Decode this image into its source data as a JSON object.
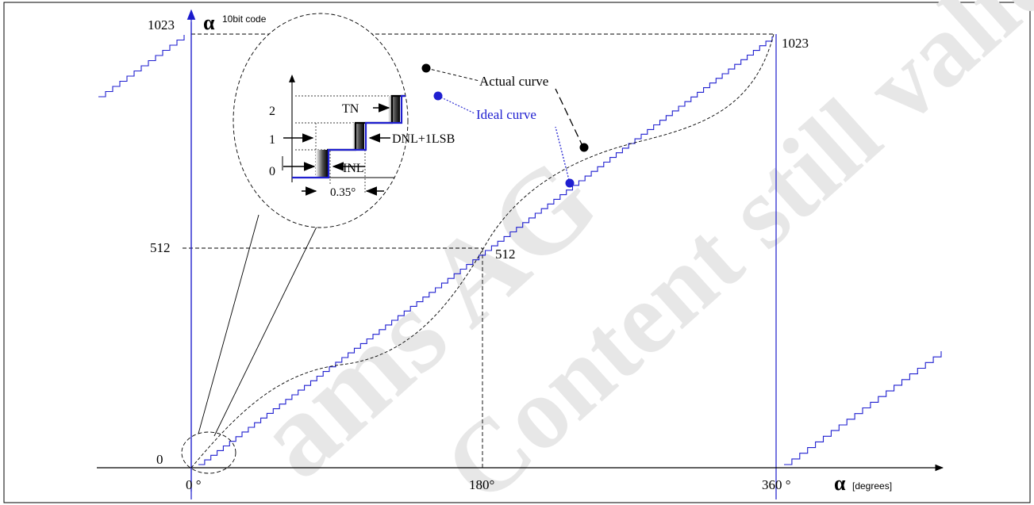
{
  "figure": {
    "y_axis": {
      "symbol": "α",
      "unit_label": "10bit code",
      "ticks": [
        "1023",
        "512",
        "0"
      ]
    },
    "x_axis": {
      "symbol": "α",
      "unit_label": "[degrees]",
      "ticks": [
        "0 °",
        "180°",
        "360 °"
      ]
    },
    "point_labels": {
      "mid": "512",
      "top": "1023"
    },
    "inset": {
      "ticks": [
        "2",
        "1",
        "0"
      ],
      "labels": {
        "tn": "TN",
        "dnl": "DNL+1LSB",
        "inl": "INL",
        "step": "0.35°"
      }
    },
    "legend": {
      "actual": "Actual curve",
      "ideal": "Ideal curve"
    },
    "watermark": "ams AG Content still valid",
    "colors": {
      "ideal": "#1f1fd0",
      "actual": "#000000",
      "axis_blue": "#1a1acc",
      "watermark": "#e6e6e6"
    }
  }
}
